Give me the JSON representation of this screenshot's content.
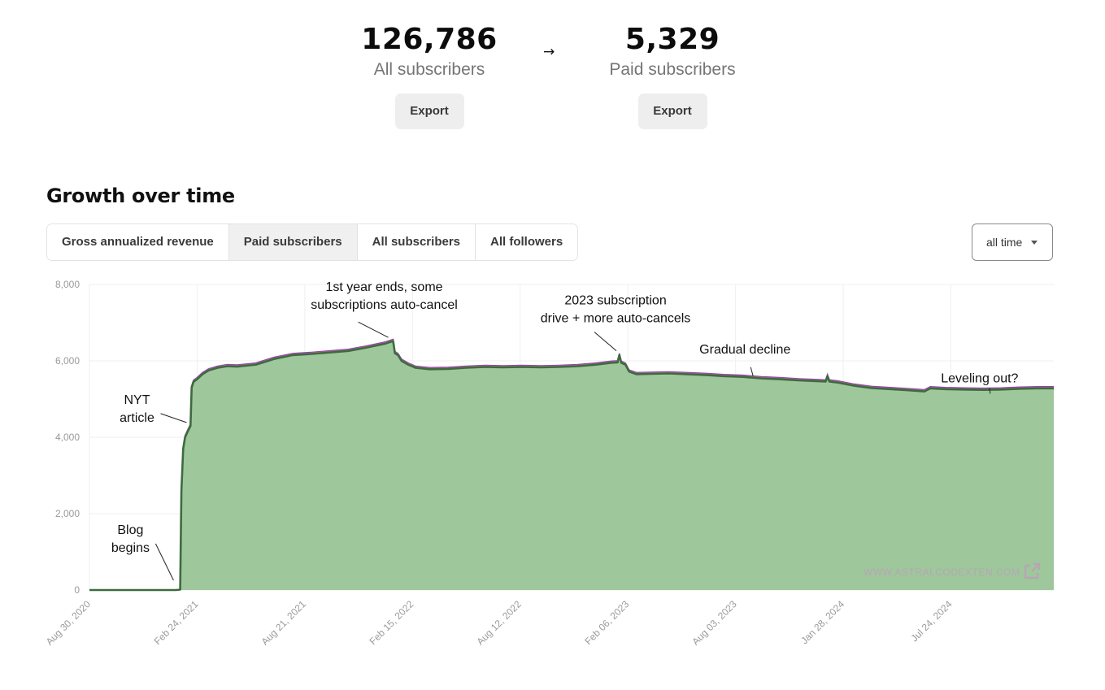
{
  "stats": [
    {
      "value": "126,786",
      "label": "All subscribers",
      "export_label": "Export"
    },
    {
      "value": "5,329",
      "label": "Paid subscribers",
      "export_label": "Export"
    }
  ],
  "arrow": "→",
  "section_title": "Growth over time",
  "tabs": [
    {
      "label": "Gross annualized revenue",
      "active": false
    },
    {
      "label": "Paid subscribers",
      "active": true
    },
    {
      "label": "All subscribers",
      "active": false
    },
    {
      "label": "All followers",
      "active": false
    }
  ],
  "range_select": {
    "value": "all time"
  },
  "watermark": "WWW.ASTRALCODEXTEN.COM",
  "colors": {
    "area_fill": "#9ec79c",
    "line": "#3d6b3f",
    "upper_line_1": "#d06b8d",
    "upper_line_2": "#8e44ad",
    "grid": "#efefef"
  },
  "chart_data": {
    "type": "area",
    "title": "",
    "xlabel": "",
    "ylabel": "",
    "ylim": [
      0,
      8000
    ],
    "yticks": [
      "0",
      "2,000",
      "4,000",
      "6,000",
      "8,000"
    ],
    "xticks": [
      "Aug 30, 2020",
      "Feb 24, 2021",
      "Aug 21, 2021",
      "Feb 15, 2022",
      "Aug 12, 2022",
      "Feb 06, 2023",
      "Aug 03, 2023",
      "Jan 28, 2024",
      "Jul 24, 2024"
    ],
    "xlim": [
      "2020-08-30",
      "2025-01-10"
    ],
    "grid": true,
    "series": [
      {
        "points": [
          [
            "2020-08-30",
            0
          ],
          [
            "2021-01-20",
            0
          ],
          [
            "2021-01-27",
            10
          ],
          [
            "2021-01-29",
            2600
          ],
          [
            "2021-02-01",
            3700
          ],
          [
            "2021-02-04",
            4000
          ],
          [
            "2021-02-10",
            4200
          ],
          [
            "2021-02-13",
            4300
          ],
          [
            "2021-02-15",
            5300
          ],
          [
            "2021-02-18",
            5450
          ],
          [
            "2021-02-24",
            5520
          ],
          [
            "2021-03-05",
            5650
          ],
          [
            "2021-03-15",
            5750
          ],
          [
            "2021-03-30",
            5820
          ],
          [
            "2021-04-15",
            5860
          ],
          [
            "2021-05-01",
            5850
          ],
          [
            "2021-06-01",
            5900
          ],
          [
            "2021-07-01",
            6050
          ],
          [
            "2021-08-01",
            6150
          ],
          [
            "2021-09-01",
            6180
          ],
          [
            "2021-10-01",
            6220
          ],
          [
            "2021-11-01",
            6260
          ],
          [
            "2021-12-01",
            6350
          ],
          [
            "2022-01-01",
            6450
          ],
          [
            "2022-01-14",
            6520
          ],
          [
            "2022-01-17",
            6200
          ],
          [
            "2022-01-22",
            6150
          ],
          [
            "2022-01-28",
            6000
          ],
          [
            "2022-02-08",
            5900
          ],
          [
            "2022-02-20",
            5820
          ],
          [
            "2022-03-15",
            5780
          ],
          [
            "2022-04-15",
            5790
          ],
          [
            "2022-05-15",
            5820
          ],
          [
            "2022-06-15",
            5840
          ],
          [
            "2022-07-15",
            5830
          ],
          [
            "2022-08-15",
            5840
          ],
          [
            "2022-09-15",
            5830
          ],
          [
            "2022-10-15",
            5840
          ],
          [
            "2022-11-15",
            5860
          ],
          [
            "2022-12-15",
            5900
          ],
          [
            "2023-01-10",
            5950
          ],
          [
            "2023-01-20",
            5960
          ],
          [
            "2023-01-23",
            6150
          ],
          [
            "2023-01-26",
            5950
          ],
          [
            "2023-02-02",
            5900
          ],
          [
            "2023-02-08",
            5720
          ],
          [
            "2023-02-20",
            5650
          ],
          [
            "2023-03-15",
            5660
          ],
          [
            "2023-04-15",
            5670
          ],
          [
            "2023-05-15",
            5650
          ],
          [
            "2023-06-15",
            5630
          ],
          [
            "2023-07-15",
            5600
          ],
          [
            "2023-08-15",
            5580
          ],
          [
            "2023-09-15",
            5540
          ],
          [
            "2023-10-15",
            5520
          ],
          [
            "2023-11-15",
            5490
          ],
          [
            "2023-12-15",
            5470
          ],
          [
            "2023-12-30",
            5460
          ],
          [
            "2024-01-02",
            5600
          ],
          [
            "2024-01-05",
            5460
          ],
          [
            "2024-01-20",
            5430
          ],
          [
            "2024-02-15",
            5350
          ],
          [
            "2024-03-15",
            5290
          ],
          [
            "2024-04-15",
            5260
          ],
          [
            "2024-05-15",
            5230
          ],
          [
            "2024-06-10",
            5200
          ],
          [
            "2024-06-20",
            5280
          ],
          [
            "2024-07-15",
            5260
          ],
          [
            "2024-08-15",
            5250
          ],
          [
            "2024-09-15",
            5240
          ],
          [
            "2024-10-15",
            5250
          ],
          [
            "2024-11-15",
            5270
          ],
          [
            "2024-12-15",
            5280
          ],
          [
            "2025-01-10",
            5280
          ]
        ]
      }
    ],
    "annotations": [
      {
        "lines": [
          "1st year ends, some",
          "subscriptions auto-cancel"
        ],
        "at": [
          "2022-01-10",
          6550
        ]
      },
      {
        "lines": [
          "2023 subscription",
          "drive + more auto-cancels"
        ],
        "at": [
          "2023-01-22",
          6200
        ]
      },
      {
        "lines": [
          "Gradual decline"
        ],
        "at": [
          "2023-09-01",
          5600
        ]
      },
      {
        "lines": [
          "Leveling out?"
        ],
        "at": [
          "2024-10-01",
          5270
        ]
      },
      {
        "lines": [
          "NYT",
          "article"
        ],
        "at": [
          "2021-02-12",
          4300
        ]
      },
      {
        "lines": [
          "Blog",
          "begins"
        ],
        "at": [
          "2021-01-20",
          0
        ]
      }
    ]
  }
}
